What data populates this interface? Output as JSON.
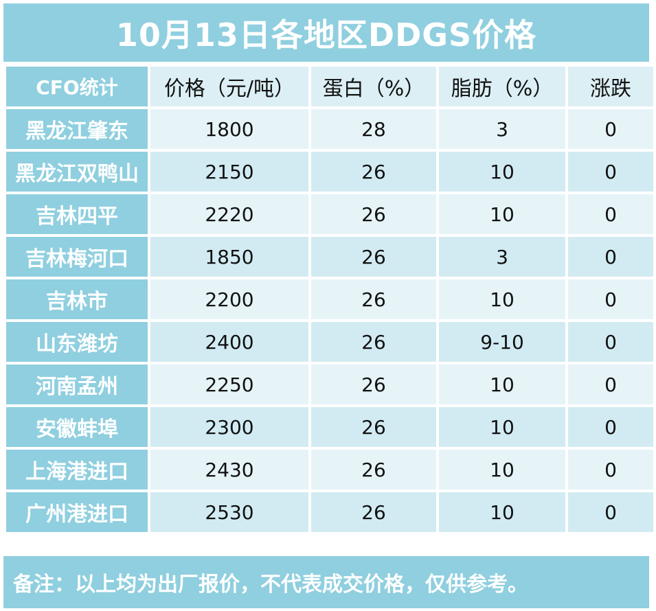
{
  "title": "10月13日各地区DDGS价格",
  "columns": [
    "CFO统计",
    "价格（元/吨）",
    "蛋白（%）",
    "脂肪（%）",
    "涨跌"
  ],
  "rows": [
    {
      "region": "黑龙江肇东",
      "price": "1800",
      "protein": "28",
      "fat": "3",
      "change": "0"
    },
    {
      "region": "黑龙江双鸭山",
      "price": "2150",
      "protein": "26",
      "fat": "10",
      "change": "0"
    },
    {
      "region": "吉林四平",
      "price": "2220",
      "protein": "26",
      "fat": "10",
      "change": "0"
    },
    {
      "region": "吉林梅河口",
      "price": "1850",
      "protein": "26",
      "fat": "3",
      "change": "0"
    },
    {
      "region": "吉林市",
      "price": "2200",
      "protein": "26",
      "fat": "10",
      "change": "0"
    },
    {
      "region": "山东潍坊",
      "price": "2400",
      "protein": "26",
      "fat": "9-10",
      "change": "0"
    },
    {
      "region": "河南孟州",
      "price": "2250",
      "protein": "26",
      "fat": "10",
      "change": "0"
    },
    {
      "region": "安徽蚌埠",
      "price": "2300",
      "protein": "26",
      "fat": "10",
      "change": "0"
    },
    {
      "region": "上海港进口",
      "price": "2430",
      "protein": "26",
      "fat": "10",
      "change": "0"
    },
    {
      "region": "广州港进口",
      "price": "2530",
      "protein": "26",
      "fat": "10",
      "change": "0"
    }
  ],
  "footer": "备注：以上均为出厂报价，不代表成交价格，仅供参考。",
  "colors": {
    "accent": "#8fcfdf",
    "cell_light": "#e6f4f8",
    "cell_dark": "#d2ebf2"
  }
}
